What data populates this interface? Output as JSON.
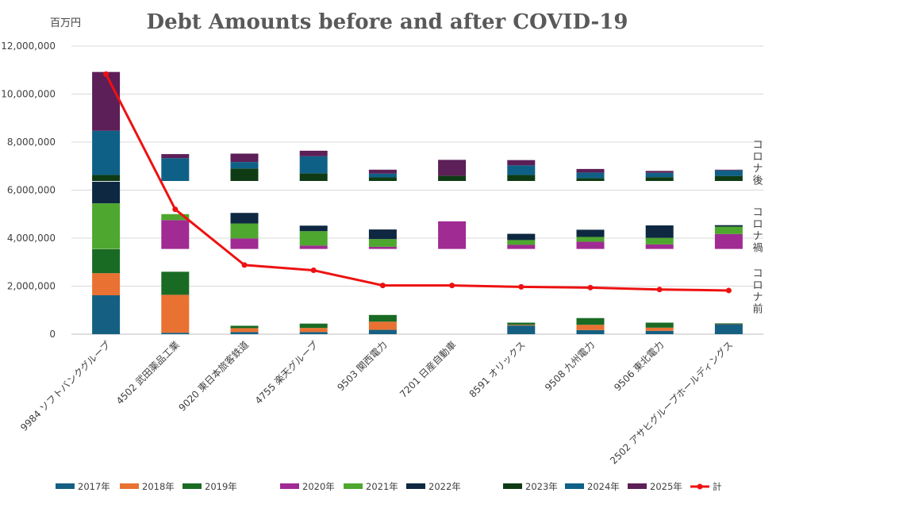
{
  "chart_data": {
    "type": "bar",
    "subtype": "stacked bar (three stacked groups per company) with line overlay",
    "title": "Debt Amounts before and after COVID-19",
    "unit_label": "百万円",
    "ylim": [
      0,
      12000000
    ],
    "yticks": [
      0,
      2000000,
      4000000,
      6000000,
      8000000,
      10000000,
      12000000
    ],
    "ytick_labels": [
      "0",
      "2,000,000",
      "4,000,000",
      "6,000,000",
      "8,000,000",
      "10,000,000",
      "12,000,000"
    ],
    "grid": true,
    "categories": [
      "9984 ソフトバンクグループ",
      "4502 武田薬品工業",
      "9020 東日本旅客鉄道",
      "4755 楽天グループ",
      "9503 関西電力",
      "7201 日産自動車",
      "8591 オリックス",
      "9508 九州電力",
      "9506 東北電力",
      "2502 アサヒグループホールディングス"
    ],
    "band_labels": [
      {
        "text": "コロナ前",
        "y_data": 1800000
      },
      {
        "text": "コロナ禍",
        "y_data": 4350000
      },
      {
        "text": "コロナ後",
        "y_data": 7150000
      }
    ],
    "groups": [
      {
        "name": "コロナ前",
        "baseline": 0,
        "series": [
          "2017年",
          "2018年",
          "2019年"
        ]
      },
      {
        "name": "コロナ禍",
        "baseline": 3550000,
        "series": [
          "2020年",
          "2021年",
          "2022年"
        ]
      },
      {
        "name": "コロナ後",
        "baseline": 6380000,
        "series": [
          "2023年",
          "2024年",
          "2025年"
        ]
      }
    ],
    "series": [
      {
        "name": "2017年",
        "color": "#156082",
        "values": [
          1620000,
          60000,
          90000,
          90000,
          180000,
          0,
          360000,
          170000,
          140000,
          430000
        ]
      },
      {
        "name": "2018年",
        "color": "#E97132",
        "values": [
          920000,
          1580000,
          160000,
          170000,
          340000,
          0,
          30000,
          220000,
          130000,
          10000
        ]
      },
      {
        "name": "2019年",
        "color": "#196B24",
        "values": [
          1000000,
          960000,
          100000,
          180000,
          280000,
          0,
          90000,
          280000,
          210000,
          10000
        ]
      },
      {
        "name": "2020年",
        "color": "#A02B93",
        "values": [
          0,
          1200000,
          440000,
          140000,
          90000,
          1150000,
          170000,
          300000,
          190000,
          620000
        ]
      },
      {
        "name": "2021年",
        "color": "#4EA72E",
        "values": [
          1900000,
          250000,
          620000,
          600000,
          320000,
          0,
          200000,
          200000,
          270000,
          310000
        ]
      },
      {
        "name": "2022年",
        "color": "#0E2841",
        "values": [
          900000,
          0,
          440000,
          230000,
          400000,
          0,
          260000,
          300000,
          520000,
          60000
        ]
      },
      {
        "name": "2023年",
        "color": "#0E3B14",
        "values": [
          250000,
          0,
          520000,
          320000,
          150000,
          220000,
          250000,
          120000,
          160000,
          210000
        ]
      },
      {
        "name": "2024年",
        "color": "#0F6087",
        "values": [
          1840000,
          950000,
          270000,
          710000,
          160000,
          0,
          400000,
          230000,
          180000,
          230000
        ]
      },
      {
        "name": "2025年",
        "color": "#5C1F57",
        "values": [
          2450000,
          170000,
          350000,
          230000,
          160000,
          660000,
          220000,
          150000,
          80000,
          30000
        ]
      }
    ],
    "line": {
      "name": "計",
      "color": "#EE1111",
      "values": [
        10830000,
        5200000,
        2880000,
        2660000,
        2030000,
        2030000,
        1970000,
        1940000,
        1860000,
        1820000
      ]
    },
    "legend": {
      "position": "bottom",
      "items": [
        "2017年",
        "2018年",
        "2019年",
        "2020年",
        "2021年",
        "2022年",
        "2023年",
        "2024年",
        "2025年",
        "計"
      ]
    }
  }
}
